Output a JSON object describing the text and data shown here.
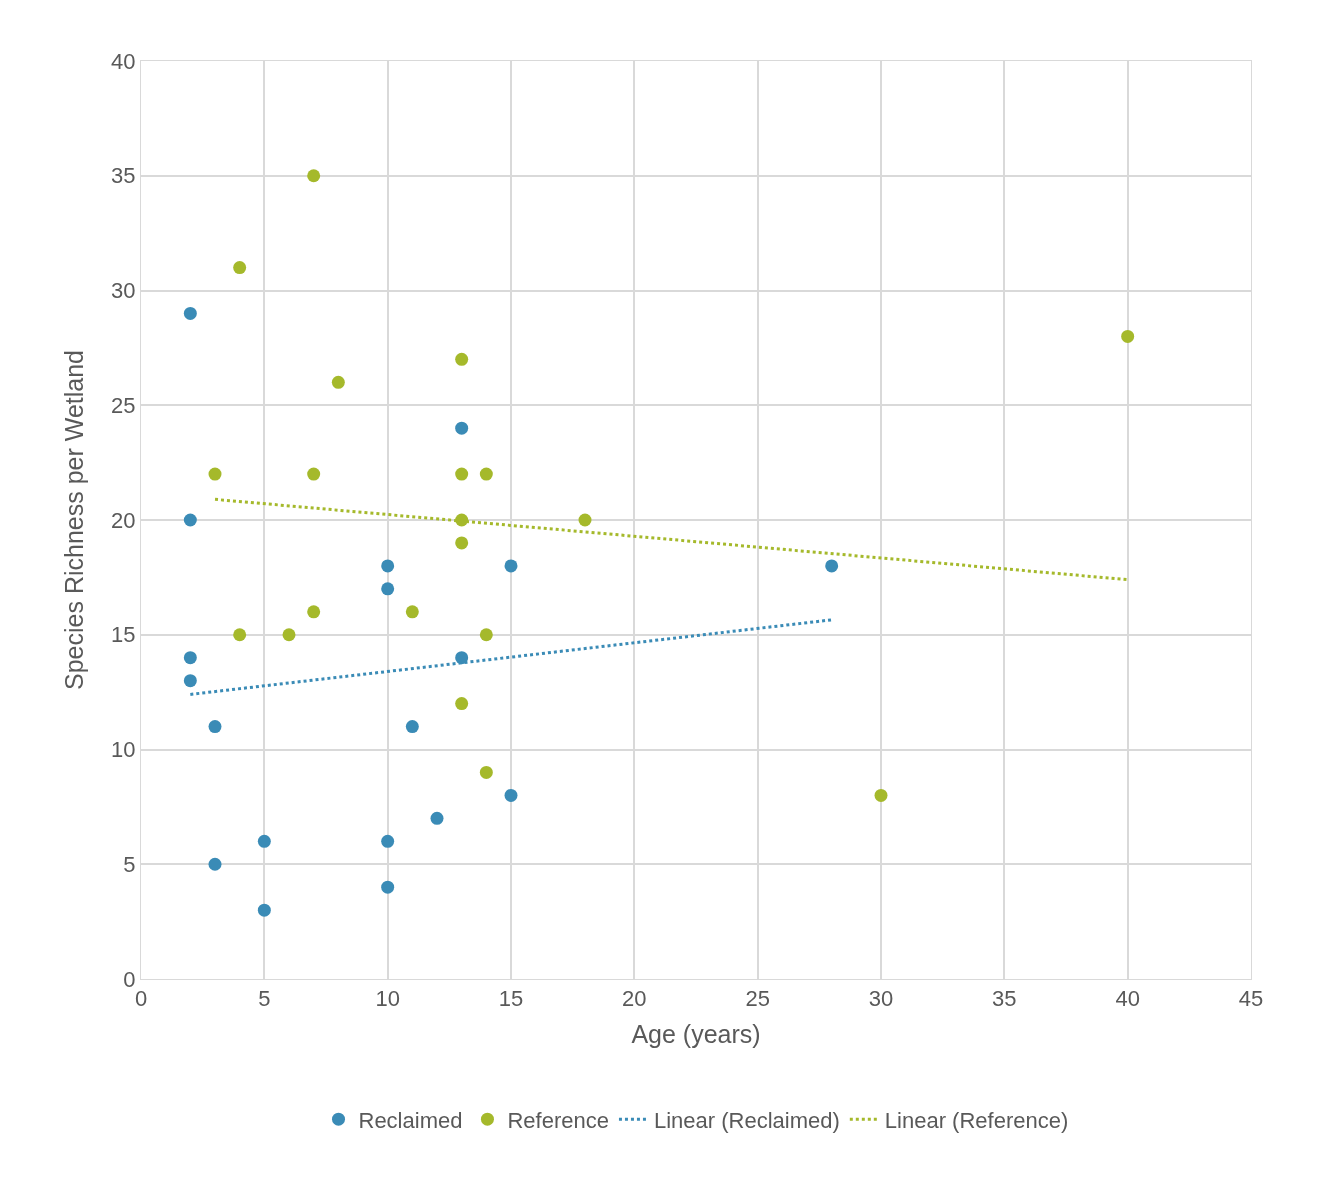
{
  "chart_data": {
    "type": "scatter",
    "xlabel": "Age (years)",
    "ylabel": "Species Richness per Wetland",
    "xlim": [
      0,
      45
    ],
    "xticks": [
      0,
      5,
      10,
      15,
      20,
      25,
      30,
      35,
      40,
      45
    ],
    "ylim": [
      0,
      40
    ],
    "yticks": [
      0,
      5,
      10,
      15,
      20,
      25,
      30,
      35,
      40
    ],
    "grid": true,
    "legend": "bottom",
    "series": [
      {
        "name": "Reclaimed",
        "marker": "circle",
        "color": "#3a8bb6",
        "x": [
          2,
          2,
          2,
          2,
          3,
          3,
          5,
          5,
          10,
          10,
          10,
          10,
          11,
          12,
          13,
          13,
          15,
          15,
          28
        ],
        "values": [
          29,
          20,
          14,
          13,
          11,
          5,
          6,
          3,
          18,
          17,
          6,
          4,
          11,
          7,
          24,
          14,
          18,
          8,
          18
        ]
      },
      {
        "name": "Reference",
        "marker": "circle",
        "color": "#a5b92b",
        "x": [
          7,
          4,
          8,
          13,
          3,
          7,
          13,
          14,
          13,
          18,
          13,
          4,
          6,
          7,
          11,
          14,
          13,
          14,
          30,
          40
        ],
        "values": [
          35,
          31,
          26,
          27,
          22,
          22,
          22,
          22,
          20,
          20,
          19,
          15,
          15,
          16,
          16,
          15,
          12,
          9,
          8,
          28
        ]
      },
      {
        "name": "Linear (Reclaimed)",
        "type": "line",
        "marker": "none",
        "line_style": "dotted",
        "color": "#3a8bb6",
        "x": [
          2,
          28
        ],
        "values": [
          12.4,
          15.65
        ]
      },
      {
        "name": "Linear (Reference)",
        "type": "line",
        "marker": "none",
        "line_style": "dotted",
        "color": "#a5b92b",
        "x": [
          3,
          40
        ],
        "values": [
          20.9,
          17.4
        ]
      }
    ]
  }
}
